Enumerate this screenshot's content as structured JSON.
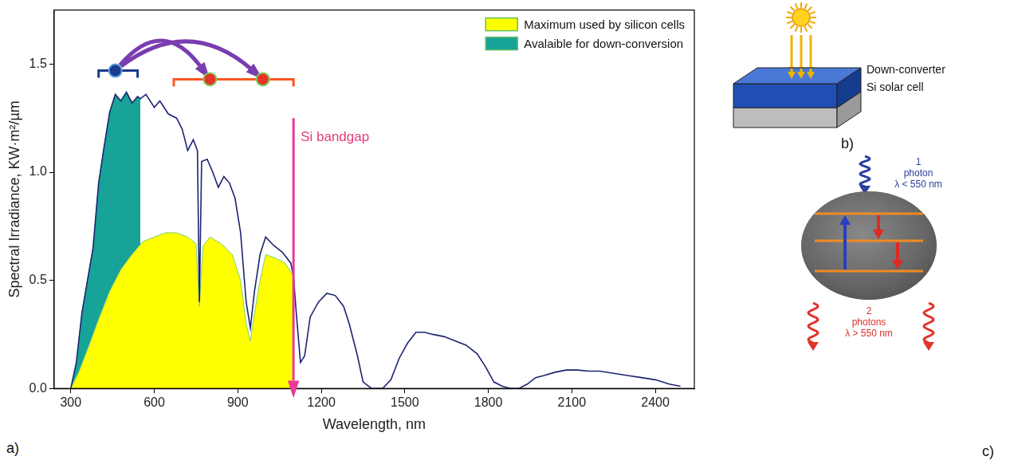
{
  "chart_data": {
    "type": "line",
    "x_label": "Wavelength, nm",
    "y_label": "Spectral Irradiance, KW·m²/µm",
    "xlim": [
      240,
      2540
    ],
    "ylim": [
      0,
      1.75
    ],
    "xticks": [
      300,
      600,
      900,
      1200,
      1500,
      1800,
      2100,
      2400
    ],
    "yticks": [
      {
        "value": 0,
        "label": "0.0"
      },
      {
        "value": 0.5,
        "label": "0.5"
      },
      {
        "value": 1,
        "label": "1.0"
      },
      {
        "value": 1.5,
        "label": "1.5"
      }
    ],
    "grid": false,
    "legend": "upper right",
    "series": [
      {
        "type": "line",
        "color": "#1b2470",
        "x": [
          300,
          320,
          340,
          360,
          380,
          400,
          420,
          440,
          460,
          480,
          500,
          520,
          540,
          550,
          570,
          600,
          620,
          650,
          680,
          700,
          720,
          740,
          755,
          762,
          770,
          790,
          810,
          830,
          850,
          870,
          890,
          910,
          930,
          945,
          960,
          980,
          1000,
          1030,
          1060,
          1090,
          1100,
          1110,
          1125,
          1140,
          1160,
          1190,
          1220,
          1250,
          1280,
          1300,
          1330,
          1350,
          1380,
          1420,
          1450,
          1480,
          1510,
          1540,
          1570,
          1600,
          1640,
          1680,
          1720,
          1760,
          1790,
          1820,
          1850,
          1880,
          1910,
          1940,
          1970,
          2000,
          2040,
          2080,
          2120,
          2160,
          2200,
          2250,
          2300,
          2350,
          2400,
          2450,
          2490
        ],
        "values": [
          0,
          0.12,
          0.35,
          0.5,
          0.65,
          0.95,
          1.12,
          1.28,
          1.36,
          1.33,
          1.37,
          1.32,
          1.35,
          1.34,
          1.36,
          1.3,
          1.33,
          1.27,
          1.25,
          1.2,
          1.1,
          1.15,
          1.1,
          0.4,
          1.05,
          1.06,
          1.0,
          0.93,
          0.98,
          0.95,
          0.88,
          0.72,
          0.4,
          0.28,
          0.45,
          0.62,
          0.7,
          0.66,
          0.63,
          0.58,
          0.52,
          0.35,
          0.12,
          0.15,
          0.33,
          0.4,
          0.44,
          0.43,
          0.38,
          0.3,
          0.15,
          0.03,
          0,
          0,
          0.04,
          0.14,
          0.21,
          0.26,
          0.26,
          0.25,
          0.24,
          0.22,
          0.2,
          0.16,
          0.1,
          0.03,
          0.01,
          0,
          0,
          0.02,
          0.05,
          0.06,
          0.075,
          0.085,
          0.085,
          0.08,
          0.08,
          0.07,
          0.06,
          0.05,
          0.04,
          0.02,
          0.01
        ]
      },
      {
        "name": "Maximum used by silicon cells",
        "type": "area",
        "color": "#ffff00",
        "x": [
          300,
          330,
          360,
          400,
          440,
          480,
          520,
          560,
          600,
          640,
          680,
          720,
          750,
          762,
          775,
          800,
          840,
          880,
          910,
          930,
          945,
          960,
          980,
          1000,
          1040,
          1070,
          1100
        ],
        "values": [
          0,
          0.08,
          0.18,
          0.32,
          0.45,
          0.55,
          0.62,
          0.68,
          0.7,
          0.72,
          0.72,
          0.7,
          0.67,
          0.38,
          0.66,
          0.7,
          0.67,
          0.62,
          0.5,
          0.3,
          0.22,
          0.35,
          0.5,
          0.62,
          0.6,
          0.58,
          0.52
        ]
      },
      {
        "name": "Avalaible for down-conversion",
        "type": "area",
        "color": "#17a398",
        "x": [
          300,
          320,
          340,
          360,
          380,
          400,
          420,
          440,
          460,
          480,
          500,
          520,
          540,
          550
        ],
        "values": [
          0,
          0.12,
          0.35,
          0.5,
          0.65,
          0.95,
          1.12,
          1.28,
          1.36,
          1.33,
          1.37,
          1.32,
          1.35,
          1.34
        ]
      }
    ],
    "annotations": [
      {
        "text": "Si bandgap",
        "x": 1100,
        "y": 1.25
      }
    ],
    "down_conversion": {
      "source": {
        "range": [
          400,
          540
        ],
        "y": 1.47,
        "x": [
          460
        ]
      },
      "targets": {
        "range": [
          670,
          1100
        ],
        "y": 1.43,
        "x": [
          800,
          990
        ]
      }
    }
  },
  "panels": {
    "a": {
      "label": "a)"
    },
    "b": {
      "label": "b)",
      "layers": [
        "Down-converter",
        "Si solar cell"
      ]
    },
    "c": {
      "label": "c)",
      "incoming": [
        "1",
        "photon",
        "λ < 550 nm"
      ],
      "outgoing": [
        "2",
        "photons",
        "λ > 550 nm"
      ]
    }
  }
}
